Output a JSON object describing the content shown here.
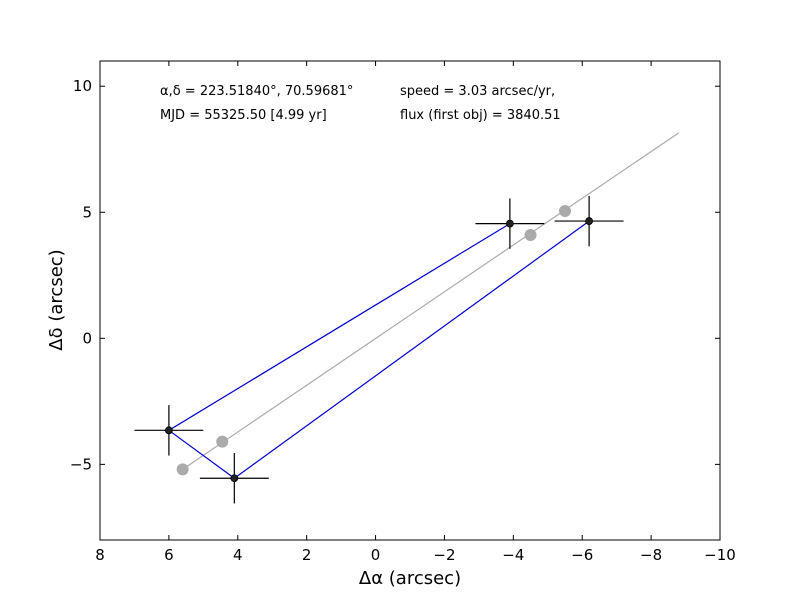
{
  "chart_data": {
    "type": "scatter",
    "xlabel": "Δα (arcsec)",
    "ylabel": "Δδ (arcsec)",
    "xlim": [
      8,
      -10
    ],
    "ylim": [
      -8,
      11
    ],
    "xticks": [
      8,
      6,
      4,
      2,
      0,
      -2,
      -4,
      -6,
      -8,
      -10
    ],
    "xtick_labels": [
      "8",
      "6",
      "4",
      "2",
      "0",
      "−2",
      "−4",
      "−6",
      "−8",
      "−10"
    ],
    "yticks": [
      10,
      5,
      0,
      -5
    ],
    "ytick_labels": [
      "10",
      "5",
      "0",
      "−5"
    ],
    "annotations": {
      "coords": "α,δ = 223.51840°, 70.59681°",
      "mjd": "MJD = 55325.50 [4.99 yr]",
      "speed": "speed = 3.03 arcsec/yr,",
      "flux": "flux (first obj) = 3840.51"
    },
    "series": [
      {
        "color": "#0000cc",
        "marker_color": "#222222",
        "points": [
          {
            "x": 6.0,
            "y": -3.65,
            "xerr": 1.0,
            "yerr": 1.0
          },
          {
            "x": 4.1,
            "y": -5.55,
            "xerr": 1.0,
            "yerr": 1.0
          },
          {
            "x": -3.9,
            "y": 4.55,
            "xerr": 1.0,
            "yerr": 1.0
          },
          {
            "x": -6.2,
            "y": 4.65,
            "xerr": 1.0,
            "yerr": 1.0
          }
        ],
        "path_order": [
          2,
          0,
          1,
          3
        ]
      },
      {
        "color": "#aaaaaa",
        "line": [
          [
            5.6,
            -5.2
          ],
          [
            -8.8,
            8.15
          ]
        ],
        "points": [
          {
            "x": 5.6,
            "y": -5.2
          },
          {
            "x": 4.45,
            "y": -4.1
          },
          {
            "x": -4.5,
            "y": 4.1
          },
          {
            "x": -5.5,
            "y": 5.05
          }
        ]
      }
    ]
  }
}
